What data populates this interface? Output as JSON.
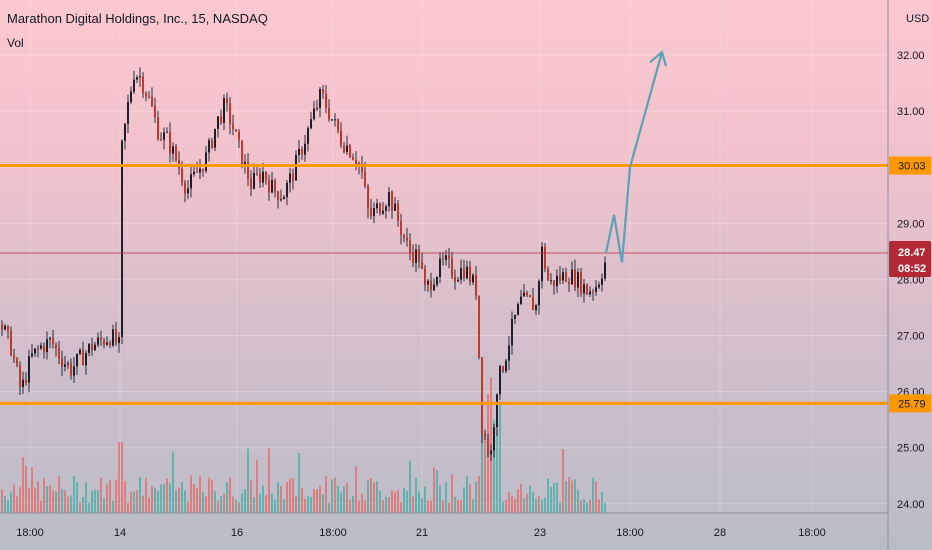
{
  "header": {
    "title": "Marathon Digital Holdings, Inc., 15, NASDAQ",
    "vol_label": "Vol"
  },
  "currency": "USD",
  "chart_data": {
    "type": "candlestick",
    "ylim": [
      23.8,
      32.6
    ],
    "yticks": [
      "24.00",
      "25.00",
      "26.00",
      "27.00",
      "28.00",
      "29.00",
      "30.00",
      "31.00",
      "32.00"
    ],
    "xticks": [
      "18:00",
      "14",
      "16",
      "18:00",
      "21",
      "23",
      "18:00",
      "28",
      "18:00"
    ],
    "price_path": [
      [
        0,
        27.2
      ],
      [
        10,
        26.8
      ],
      [
        20,
        26.0
      ],
      [
        30,
        26.6
      ],
      [
        40,
        26.8
      ],
      [
        50,
        26.9
      ],
      [
        60,
        26.6
      ],
      [
        70,
        26.4
      ],
      [
        80,
        26.6
      ],
      [
        90,
        26.8
      ],
      [
        100,
        26.9
      ],
      [
        110,
        27.0
      ],
      [
        118,
        26.8
      ],
      [
        120,
        30.2
      ],
      [
        127,
        31.1
      ],
      [
        133,
        31.7
      ],
      [
        140,
        31.6
      ],
      [
        150,
        31.1
      ],
      [
        158,
        30.6
      ],
      [
        166,
        30.5
      ],
      [
        176,
        30.1
      ],
      [
        186,
        29.6
      ],
      [
        196,
        29.9
      ],
      [
        206,
        30.2
      ],
      [
        216,
        30.8
      ],
      [
        224,
        31.1
      ],
      [
        232,
        30.7
      ],
      [
        240,
        30.2
      ],
      [
        250,
        29.7
      ],
      [
        262,
        29.9
      ],
      [
        272,
        29.6
      ],
      [
        282,
        29.5
      ],
      [
        292,
        29.9
      ],
      [
        302,
        30.4
      ],
      [
        312,
        30.9
      ],
      [
        320,
        31.3
      ],
      [
        330,
        30.9
      ],
      [
        340,
        30.5
      ],
      [
        350,
        30.3
      ],
      [
        360,
        30.0
      ],
      [
        368,
        29.1
      ],
      [
        378,
        29.3
      ],
      [
        388,
        29.5
      ],
      [
        398,
        29.0
      ],
      [
        408,
        28.5
      ],
      [
        418,
        28.4
      ],
      [
        424,
        27.8
      ],
      [
        434,
        28.1
      ],
      [
        444,
        28.3
      ],
      [
        454,
        28.1
      ],
      [
        464,
        28.2
      ],
      [
        476,
        27.8
      ],
      [
        480,
        25.5
      ],
      [
        486,
        25.0
      ],
      [
        490,
        24.9
      ],
      [
        496,
        26.1
      ],
      [
        504,
        26.6
      ],
      [
        512,
        27.2
      ],
      [
        520,
        27.6
      ],
      [
        528,
        27.6
      ],
      [
        536,
        27.5
      ],
      [
        540,
        28.6
      ],
      [
        548,
        27.9
      ],
      [
        556,
        28.0
      ],
      [
        566,
        28.1
      ],
      [
        576,
        28.0
      ],
      [
        586,
        27.8
      ],
      [
        596,
        27.9
      ],
      [
        606,
        28.4
      ]
    ],
    "levels": [
      {
        "label": "30.03",
        "value": 30.03,
        "color": "#ff9800"
      },
      {
        "label": "25.79",
        "value": 25.79,
        "color": "#ff9800"
      }
    ],
    "current": {
      "price": "28.47",
      "countdown": "08:52",
      "value": 28.47,
      "color": "#b22833"
    },
    "forecast_path": [
      [
        606,
        28.47
      ],
      [
        614,
        29.15
      ],
      [
        622,
        28.3
      ],
      [
        630,
        30.0
      ],
      [
        662,
        32.05
      ]
    ],
    "colors": {
      "up": "#26a69a",
      "down": "#ef5350",
      "forecast": "#5ba1b8"
    }
  }
}
